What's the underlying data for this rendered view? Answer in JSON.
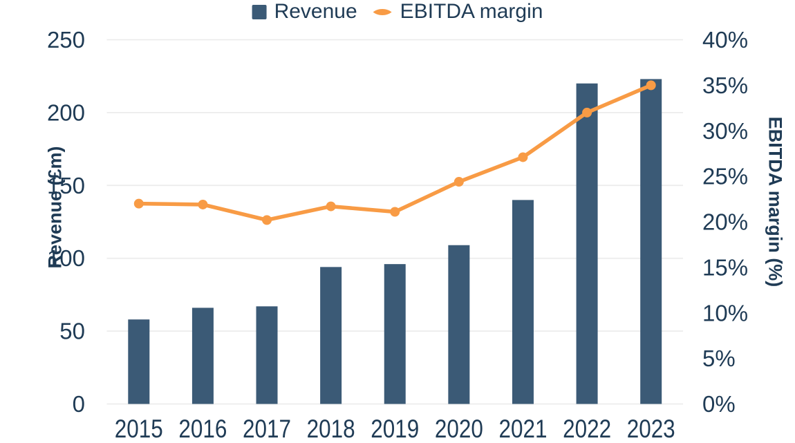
{
  "chart_data": {
    "type": "combo-bar-line",
    "title": "",
    "categories": [
      "2015",
      "2016",
      "2017",
      "2018",
      "2019",
      "2020",
      "2021",
      "2022",
      "2023"
    ],
    "series": [
      {
        "name": "Revenue",
        "type": "bar",
        "axis": "left",
        "color": "#3b5a76",
        "values": [
          58,
          66,
          67,
          94,
          96,
          109,
          140,
          220,
          223
        ]
      },
      {
        "name": "EBITDA margin",
        "type": "line",
        "axis": "right",
        "color": "#f89b45",
        "values": [
          22,
          21.9,
          20.2,
          21.7,
          21.1,
          24.4,
          27.1,
          32,
          35
        ]
      }
    ],
    "left_axis": {
      "label": "Revenue (£m)",
      "min": 0,
      "max": 250,
      "step": 50,
      "ticks": [
        "0",
        "50",
        "100",
        "150",
        "200",
        "250"
      ]
    },
    "right_axis": {
      "label": "EBITDA margin (%)",
      "min": 0,
      "max": 40,
      "step": 5,
      "ticks": [
        "0%",
        "5%",
        "10%",
        "15%",
        "20%",
        "25%",
        "30%",
        "35%",
        "40%"
      ]
    },
    "grid": "horizontal-only",
    "legend_position": "top-center",
    "colors": {
      "text": "#1f3b55",
      "grid": "#ececec",
      "background": "#ffffff"
    }
  }
}
